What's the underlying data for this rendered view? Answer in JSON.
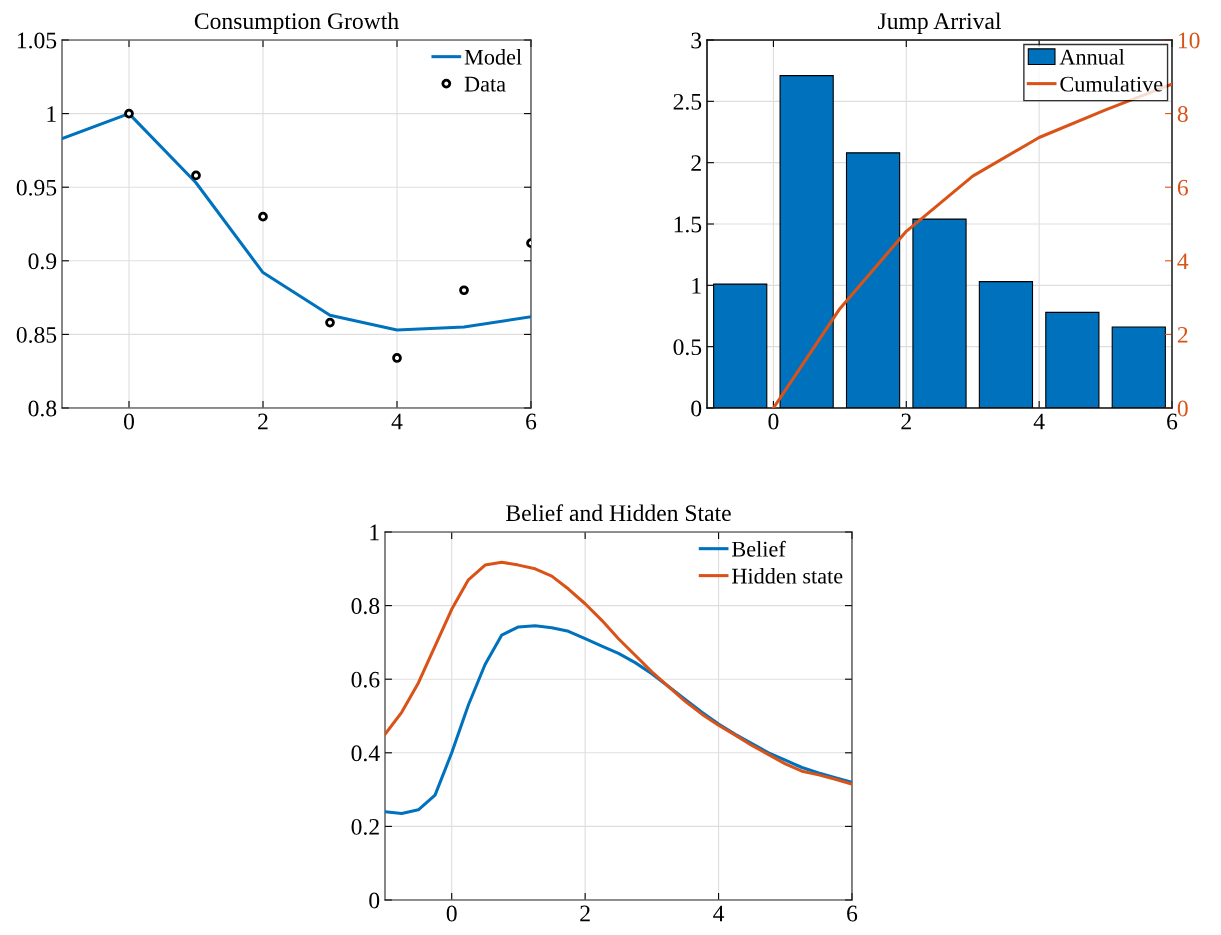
{
  "chart_data": [
    {
      "type": "line",
      "title": "Consumption Growth",
      "xlim": [
        -1,
        6
      ],
      "xticks": [
        0,
        2,
        4,
        6
      ],
      "ylim": [
        0.8,
        1.05
      ],
      "yticks": [
        0.8,
        0.85,
        0.9,
        0.95,
        1,
        1.05
      ],
      "grid": true,
      "legend": "top right",
      "series": [
        {
          "name": "Model",
          "type": "line",
          "color": "#0072bd",
          "marker": "none",
          "x": [
            -1,
            0,
            1,
            2,
            3,
            4,
            5,
            6
          ],
          "values": [
            0.983,
            1.0,
            0.953,
            0.892,
            0.863,
            0.853,
            0.855,
            0.862
          ]
        },
        {
          "name": "Data",
          "type": "scatter",
          "color": "#000000",
          "marker": "circle",
          "x": [
            0,
            1,
            2,
            3,
            4,
            5,
            6
          ],
          "values": [
            1.0,
            0.958,
            0.93,
            0.858,
            0.834,
            0.88,
            0.912
          ]
        }
      ]
    },
    {
      "type": "bar",
      "title": "Jump Arrival",
      "xlim": [
        -1,
        6
      ],
      "xticks": [
        0,
        2,
        4,
        6
      ],
      "ylim": [
        0,
        3
      ],
      "yticks": [
        0,
        0.5,
        1,
        1.5,
        2,
        2.5,
        3
      ],
      "y2lim": [
        0,
        10
      ],
      "y2ticks": [
        0,
        2,
        4,
        6,
        8,
        10
      ],
      "grid": true,
      "legend": "top right",
      "series": [
        {
          "name": "Annual",
          "type": "bar",
          "color": "#0072bd",
          "x": [
            -0.5,
            0.5,
            1.5,
            2.5,
            3.5,
            4.5,
            5.5
          ],
          "values": [
            1.01,
            2.71,
            2.08,
            1.54,
            1.03,
            0.78,
            0.66
          ]
        },
        {
          "name": "Cumulative",
          "type": "line",
          "axis": "y2",
          "color": "#d95319",
          "x": [
            0,
            1,
            2,
            3,
            4,
            5,
            6
          ],
          "values": [
            0,
            2.7,
            4.8,
            6.3,
            7.35,
            8.1,
            8.8
          ]
        }
      ]
    },
    {
      "type": "line",
      "title": "Belief and Hidden State",
      "xlim": [
        -1,
        6
      ],
      "xticks": [
        0,
        2,
        4,
        6
      ],
      "ylim": [
        0,
        1
      ],
      "yticks": [
        0,
        0.2,
        0.4,
        0.6,
        0.8,
        1
      ],
      "grid": true,
      "legend": "top right",
      "series": [
        {
          "name": "Belief",
          "color": "#0072bd",
          "x": [
            -1,
            -0.75,
            -0.5,
            -0.25,
            0,
            0.25,
            0.5,
            0.75,
            1,
            1.25,
            1.5,
            1.75,
            2,
            2.25,
            2.5,
            2.75,
            3,
            3.25,
            3.5,
            3.75,
            4,
            4.25,
            4.5,
            4.75,
            5,
            5.25,
            5.5,
            5.75,
            6
          ],
          "values": [
            0.24,
            0.235,
            0.245,
            0.285,
            0.4,
            0.53,
            0.64,
            0.72,
            0.742,
            0.745,
            0.74,
            0.73,
            0.71,
            0.69,
            0.67,
            0.645,
            0.615,
            0.58,
            0.545,
            0.51,
            0.478,
            0.45,
            0.425,
            0.4,
            0.38,
            0.36,
            0.345,
            0.332,
            0.32
          ]
        },
        {
          "name": "Hidden state",
          "color": "#d95319",
          "x": [
            -1,
            -0.75,
            -0.5,
            -0.25,
            0,
            0.25,
            0.5,
            0.75,
            1,
            1.25,
            1.5,
            1.75,
            2,
            2.25,
            2.5,
            2.75,
            3,
            3.25,
            3.5,
            3.75,
            4,
            4.25,
            4.5,
            4.75,
            5,
            5.25,
            5.5,
            5.75,
            6
          ],
          "values": [
            0.45,
            0.51,
            0.59,
            0.69,
            0.79,
            0.87,
            0.91,
            0.918,
            0.91,
            0.9,
            0.88,
            0.845,
            0.805,
            0.76,
            0.71,
            0.665,
            0.62,
            0.58,
            0.54,
            0.505,
            0.475,
            0.448,
            0.42,
            0.395,
            0.37,
            0.35,
            0.34,
            0.328,
            0.315
          ]
        }
      ]
    }
  ]
}
